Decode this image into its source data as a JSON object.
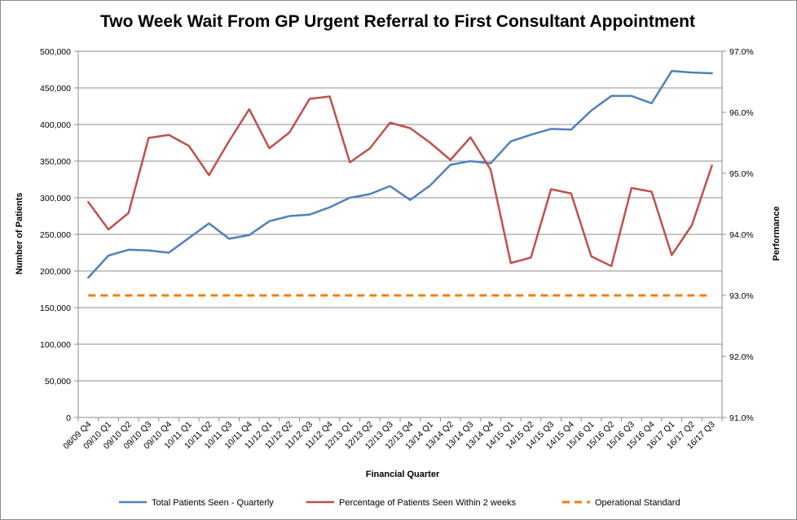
{
  "chart_data": {
    "type": "line",
    "title": "Two Week Wait From GP Urgent Referral to First Consultant Appointment",
    "xlabel": "Financial Quarter",
    "ylabel": "Number of Patients",
    "y2label": "Performance",
    "categories": [
      "08/09 Q4",
      "09/10 Q1",
      "09/10 Q2",
      "09/10 Q3",
      "09/10 Q4",
      "10/11 Q1",
      "10/11 Q2",
      "10/11 Q3",
      "10/11 Q4",
      "11/12 Q1",
      "11/12 Q2",
      "11/12 Q3",
      "11/12 Q4",
      "12/13 Q1",
      "12/13 Q2",
      "12/13 Q3",
      "12/13 Q4",
      "13/14 Q1",
      "13/14 Q2",
      "13/14 Q3",
      "13/14 Q4",
      "14/15 Q1",
      "14/15 Q2",
      "14/15 Q3",
      "14/15 Q4",
      "15/16 Q1",
      "15/16 Q2",
      "15/16 Q3",
      "15/16 Q4",
      "16/17 Q1",
      "16/17 Q2",
      "16/17 Q3"
    ],
    "ylim": [
      0,
      500000
    ],
    "y_ticks": [
      "0",
      "50,000",
      "100,000",
      "150,000",
      "200,000",
      "250,000",
      "300,000",
      "350,000",
      "400,000",
      "450,000",
      "500,000"
    ],
    "y2lim": [
      91.0,
      97.0
    ],
    "y2_ticks": [
      "91.0%",
      "92.0%",
      "93.0%",
      "94.0%",
      "95.0%",
      "96.0%",
      "97.0%"
    ],
    "grid": true,
    "legend_position": "bottom",
    "series": [
      {
        "name": "Total Patients Seen - Quarterly",
        "axis": "left",
        "color": "#4f81bd",
        "dash": "solid",
        "values": [
          191000,
          221000,
          229000,
          228000,
          225000,
          245000,
          265000,
          244000,
          249000,
          268000,
          275000,
          277000,
          287000,
          300000,
          305000,
          316000,
          297000,
          317000,
          345000,
          350000,
          347000,
          377000,
          386000,
          394000,
          393000,
          419000,
          439000,
          439000,
          429000,
          473000,
          471000,
          470000
        ]
      },
      {
        "name": "Percentage of Patients Seen Within 2 weeks",
        "axis": "right",
        "color": "#c0504d",
        "dash": "solid",
        "values": [
          94.53,
          94.08,
          94.35,
          95.58,
          95.63,
          95.45,
          94.97,
          95.53,
          96.05,
          95.41,
          95.67,
          96.22,
          96.26,
          95.18,
          95.41,
          95.83,
          95.74,
          95.5,
          95.22,
          95.59,
          95.06,
          93.53,
          93.62,
          94.74,
          94.67,
          93.64,
          93.48,
          94.76,
          94.7,
          93.66,
          94.15,
          95.13
        ]
      },
      {
        "name": "Operational Standard",
        "axis": "right",
        "color": "#f07f09",
        "dash": "dashed",
        "values": [
          93.0,
          93.0,
          93.0,
          93.0,
          93.0,
          93.0,
          93.0,
          93.0,
          93.0,
          93.0,
          93.0,
          93.0,
          93.0,
          93.0,
          93.0,
          93.0,
          93.0,
          93.0,
          93.0,
          93.0,
          93.0,
          93.0,
          93.0,
          93.0,
          93.0,
          93.0,
          93.0,
          93.0,
          93.0,
          93.0,
          93.0,
          93.0
        ]
      }
    ]
  }
}
